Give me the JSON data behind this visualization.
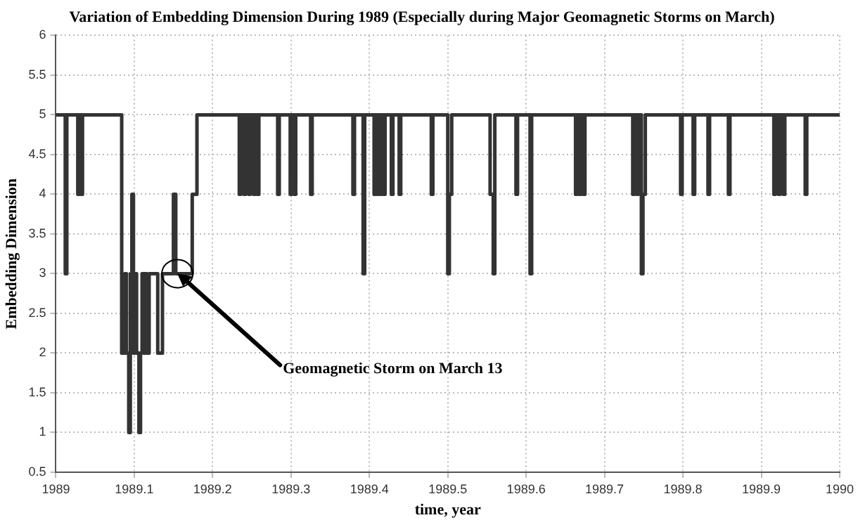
{
  "chart_data": {
    "type": "step",
    "title": "Variation of Embedding Dimension During 1989 (Especially during Major Geomagnetic Storms on March)",
    "xlabel": "time, year",
    "ylabel": "Embedding Dimension",
    "x": [
      1989.0,
      1989.012,
      1989.014,
      1989.028,
      1989.03,
      1989.032,
      1989.034,
      1989.084,
      1989.088,
      1989.09,
      1989.093,
      1989.095,
      1989.097,
      1989.099,
      1989.101,
      1989.103,
      1989.106,
      1989.108,
      1989.11,
      1989.112,
      1989.114,
      1989.116,
      1989.119,
      1989.13,
      1989.136,
      1989.15,
      1989.153,
      1989.174,
      1989.18,
      1989.234,
      1989.236,
      1989.24,
      1989.242,
      1989.246,
      1989.248,
      1989.252,
      1989.254,
      1989.257,
      1989.259,
      1989.283,
      1989.285,
      1989.299,
      1989.301,
      1989.304,
      1989.306,
      1989.325,
      1989.327,
      1989.379,
      1989.381,
      1989.392,
      1989.394,
      1989.406,
      1989.408,
      1989.41,
      1989.412,
      1989.414,
      1989.416,
      1989.418,
      1989.42,
      1989.428,
      1989.43,
      1989.438,
      1989.44,
      1989.479,
      1989.481,
      1989.5,
      1989.502,
      1989.505,
      1989.507,
      1989.554,
      1989.558,
      1989.56,
      1989.587,
      1989.589,
      1989.605,
      1989.607,
      1989.663,
      1989.665,
      1989.668,
      1989.67,
      1989.673,
      1989.675,
      1989.736,
      1989.738,
      1989.741,
      1989.743,
      1989.747,
      1989.749,
      1989.75,
      1989.752,
      1989.797,
      1989.799,
      1989.813,
      1989.815,
      1989.832,
      1989.834,
      1989.858,
      1989.86,
      1989.916,
      1989.918,
      1989.922,
      1989.924,
      1989.928,
      1989.93,
      1989.956,
      1989.958,
      1990.0
    ],
    "values": [
      5,
      3,
      5,
      4,
      5,
      4,
      5,
      2,
      3,
      2,
      1,
      3,
      4,
      2,
      3,
      2,
      1,
      2,
      3,
      2,
      3,
      2,
      3,
      2,
      3,
      4,
      3,
      4,
      5,
      4,
      5,
      4,
      5,
      4,
      5,
      4,
      5,
      4,
      5,
      4,
      5,
      4,
      5,
      4,
      5,
      4,
      5,
      4,
      5,
      3,
      5,
      4,
      5,
      4,
      5,
      4,
      5,
      4,
      5,
      4,
      5,
      4,
      5,
      4,
      5,
      3,
      4,
      5,
      5,
      4,
      3,
      5,
      4,
      5,
      3,
      5,
      4,
      5,
      4,
      5,
      4,
      5,
      4,
      5,
      4,
      5,
      3,
      4,
      4,
      5,
      4,
      5,
      4,
      5,
      4,
      5,
      4,
      5,
      4,
      5,
      4,
      5,
      4,
      5,
      4,
      5,
      5
    ],
    "color": "#333333",
    "xlim": [
      1989,
      1990
    ],
    "xticks": [
      1989,
      1989.1,
      1989.2,
      1989.3,
      1989.4,
      1989.5,
      1989.6,
      1989.7,
      1989.8,
      1989.9,
      1990
    ],
    "ylim": [
      0.5,
      6
    ],
    "yticks": [
      0.5,
      1,
      1.5,
      2,
      2.5,
      3,
      3.5,
      4,
      4.5,
      5,
      5.5,
      6
    ],
    "grid": true,
    "line_style": "solid",
    "annotations": [
      {
        "text": "Geomagnetic Storm on March 13",
        "x": 1989.155,
        "y": 3
      }
    ]
  }
}
